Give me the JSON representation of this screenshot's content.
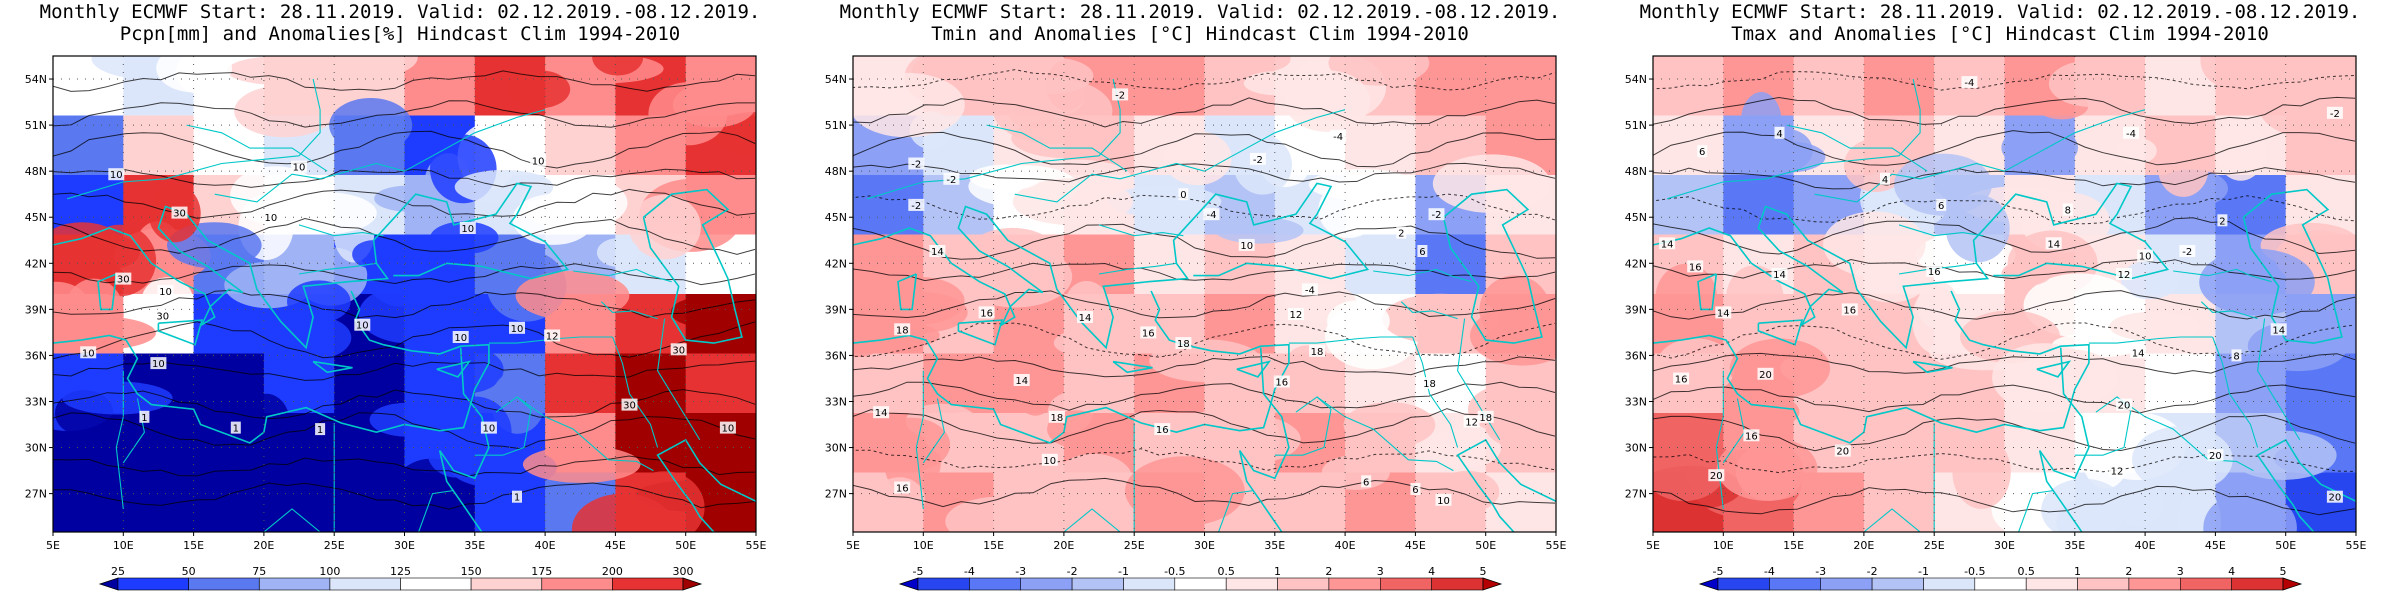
{
  "panels": [
    {
      "id": "pcpn",
      "title_line1": "Monthly ECMWF Start: 28.11.2019. Valid: 02.12.2019.-08.12.2019.",
      "title_line2": "Pcpn[mm] and Anomalies[%] Hindcast Clim 1994-2010",
      "legend_labels": [
        "25",
        "50",
        "75",
        "100",
        "125",
        "150",
        "175",
        "200",
        "300"
      ],
      "palette": [
        "#0000a0",
        "#1e3cff",
        "#5a78f0",
        "#a0b4f5",
        "#dce6fa",
        "#ffffff",
        "#ffd2d2",
        "#ff8c8c",
        "#e63232",
        "#a00000"
      ],
      "field": [
        [
          "#ffffff",
          "#dce6fa",
          "#ffffff",
          "#ffd2d2",
          "#ffd2d2",
          "#ff8c8c",
          "#e63232",
          "#ff8c8c",
          "#e63232",
          "#ff8c8c"
        ],
        [
          "#5a78f0",
          "#ffd2d2",
          "#ffffff",
          "#dce6fa",
          "#5a78f0",
          "#1e3cff",
          "#ffffff",
          "#ffd2d2",
          "#ff8c8c",
          "#e63232"
        ],
        [
          "#1e3cff",
          "#e63232",
          "#ffd2d2",
          "#ffffff",
          "#dce6fa",
          "#a0b4f5",
          "#dce6fa",
          "#ffffff",
          "#ffd2d2",
          "#ff8c8c"
        ],
        [
          "#e63232",
          "#ff8c8c",
          "#5a78f0",
          "#a0b4f5",
          "#1e3cff",
          "#1e3cff",
          "#5a78f0",
          "#a0b4f5",
          "#dce6fa",
          "#ffffff"
        ],
        [
          "#ff8c8c",
          "#ffffff",
          "#1e3cff",
          "#1e3cff",
          "#0000a0",
          "#1e3cff",
          "#1e3cff",
          "#ff8c8c",
          "#e63232",
          "#a00000"
        ],
        [
          "#1e3cff",
          "#0000a0",
          "#0000a0",
          "#1e3cff",
          "#0000a0",
          "#1e3cff",
          "#5a78f0",
          "#e63232",
          "#a00000",
          "#e63232"
        ],
        [
          "#0000a0",
          "#0000a0",
          "#0000a0",
          "#0000a0",
          "#0000a0",
          "#1e3cff",
          "#1e3cff",
          "#ff8c8c",
          "#a00000",
          "#a00000"
        ],
        [
          "#0000a0",
          "#0000a0",
          "#0000a0",
          "#0000a0",
          "#0000a0",
          "#0000a0",
          "#1e3cff",
          "#5a78f0",
          "#e63232",
          "#a00000"
        ]
      ],
      "contour_labels": [
        {
          "text": "10",
          "lon": 9.5,
          "lat": 47.8
        },
        {
          "text": "10",
          "lon": 22.5,
          "lat": 48.3
        },
        {
          "text": "10",
          "lon": 39.5,
          "lat": 48.7
        },
        {
          "text": "30",
          "lon": 14,
          "lat": 45.3
        },
        {
          "text": "10",
          "lon": 20.5,
          "lat": 45
        },
        {
          "text": "10",
          "lon": 34.5,
          "lat": 44.3
        },
        {
          "text": "30",
          "lon": 10,
          "lat": 41
        },
        {
          "text": "10",
          "lon": 13,
          "lat": 40.2
        },
        {
          "text": "30",
          "lon": 12.8,
          "lat": 38.6
        },
        {
          "text": "10",
          "lon": 27,
          "lat": 38
        },
        {
          "text": "10",
          "lon": 38,
          "lat": 37.8
        },
        {
          "text": "10",
          "lon": 7.5,
          "lat": 36.2
        },
        {
          "text": "10",
          "lon": 12.5,
          "lat": 35.5
        },
        {
          "text": "10",
          "lon": 34,
          "lat": 37.2
        },
        {
          "text": "12",
          "lon": 40.5,
          "lat": 37.3
        },
        {
          "text": "30",
          "lon": 49.5,
          "lat": 36.4
        },
        {
          "text": "30",
          "lon": 46,
          "lat": 32.8
        },
        {
          "text": "1",
          "lon": 11.5,
          "lat": 32
        },
        {
          "text": "1",
          "lon": 18,
          "lat": 31.3
        },
        {
          "text": "1",
          "lon": 24,
          "lat": 31.2
        },
        {
          "text": "10",
          "lon": 36,
          "lat": 31.3
        },
        {
          "text": "10",
          "lon": 53,
          "lat": 31.3
        },
        {
          "text": "1",
          "lon": 38,
          "lat": 26.8
        }
      ]
    },
    {
      "id": "tmin",
      "title_line1": "Monthly ECMWF Start: 28.11.2019. Valid: 02.12.2019.-08.12.2019.",
      "title_line2": "Tmin and Anomalies [°C] Hindcast Clim 1994-2010",
      "legend_labels": [
        "-5",
        "-4",
        "-3",
        "-2",
        "-1",
        "-0.5",
        "0.5",
        "1",
        "2",
        "3",
        "4",
        "5"
      ],
      "palette": [
        "#0000c8",
        "#2846f0",
        "#5a78f5",
        "#8ca0f5",
        "#b4c3f5",
        "#dce6fa",
        "#ffffff",
        "#ffe6e6",
        "#ffc3c3",
        "#ff9696",
        "#f06464",
        "#dc3232",
        "#b40000"
      ],
      "field": [
        [
          "#ffe6e6",
          "#ffc3c3",
          "#ffc3c3",
          "#ff9696",
          "#ff9696",
          "#ffc3c3",
          "#ffe6e6",
          "#ffc3c3",
          "#ff9696",
          "#ff9696"
        ],
        [
          "#8ca0f5",
          "#dce6fa",
          "#ffe6e6",
          "#ffc3c3",
          "#ffe6e6",
          "#dce6fa",
          "#ffffff",
          "#ffe6e6",
          "#ffc3c3",
          "#ff9696"
        ],
        [
          "#5a78f5",
          "#b4c3f5",
          "#ffffff",
          "#ffe6e6",
          "#dce6fa",
          "#b4c3f5",
          "#dce6fa",
          "#ffffff",
          "#8ca0f5",
          "#ffe6e6"
        ],
        [
          "#ff9696",
          "#ffc3c3",
          "#ffc3c3",
          "#ff9696",
          "#ffe6e6",
          "#ffc3c3",
          "#ffe6e6",
          "#dce6fa",
          "#5a78f5",
          "#ffc3c3"
        ],
        [
          "#ff9696",
          "#ffc3c3",
          "#ff9696",
          "#ffc3c3",
          "#ffc3c3",
          "#ff9696",
          "#ffe6e6",
          "#ffffff",
          "#ffc3c3",
          "#ff9696"
        ],
        [
          "#ffc3c3",
          "#ff9696",
          "#ff9696",
          "#ffc3c3",
          "#ff9696",
          "#ffc3c3",
          "#ffc3c3",
          "#ffe6e6",
          "#ffffff",
          "#ffc3c3"
        ],
        [
          "#ff9696",
          "#ffc3c3",
          "#ffc3c3",
          "#ff9696",
          "#ffc3c3",
          "#ffc3c3",
          "#ff9696",
          "#ffc3c3",
          "#ffe6e6",
          "#ffc3c3"
        ],
        [
          "#ffc3c3",
          "#ff9696",
          "#ffc3c3",
          "#ffc3c3",
          "#ff9696",
          "#ffc3c3",
          "#ffc3c3",
          "#ff9696",
          "#ffc3c3",
          "#ffe6e6"
        ]
      ],
      "contour_labels": [
        {
          "text": "-2",
          "lon": 9.5,
          "lat": 48.5
        },
        {
          "text": "-2",
          "lon": 24,
          "lat": 53
        },
        {
          "text": "-4",
          "lon": 39.5,
          "lat": 50.3
        },
        {
          "text": "-2",
          "lon": 33.8,
          "lat": 48.8
        },
        {
          "text": "-2",
          "lon": 12,
          "lat": 47.5
        },
        {
          "text": "-2",
          "lon": 9.5,
          "lat": 45.8
        },
        {
          "text": "0",
          "lon": 28.5,
          "lat": 46.5
        },
        {
          "text": "-4",
          "lon": 30.5,
          "lat": 45.2
        },
        {
          "text": "-2",
          "lon": 46.5,
          "lat": 45.2
        },
        {
          "text": "2",
          "lon": 44,
          "lat": 44
        },
        {
          "text": "6",
          "lon": 45.5,
          "lat": 42.8
        },
        {
          "text": "14",
          "lon": 11,
          "lat": 42.8
        },
        {
          "text": "10",
          "lon": 33,
          "lat": 43.2
        },
        {
          "text": "-4",
          "lon": 37.5,
          "lat": 40.3
        },
        {
          "text": "18",
          "lon": 8.5,
          "lat": 37.7
        },
        {
          "text": "16",
          "lon": 14.5,
          "lat": 38.8
        },
        {
          "text": "14",
          "lon": 21.5,
          "lat": 38.5
        },
        {
          "text": "16",
          "lon": 26,
          "lat": 37.5
        },
        {
          "text": "18",
          "lon": 28.5,
          "lat": 36.8
        },
        {
          "text": "12",
          "lon": 36.5,
          "lat": 38.7
        },
        {
          "text": "18",
          "lon": 38,
          "lat": 36.3
        },
        {
          "text": "14",
          "lon": 17,
          "lat": 34.4
        },
        {
          "text": "16",
          "lon": 35.5,
          "lat": 34.3
        },
        {
          "text": "18",
          "lon": 46,
          "lat": 34.2
        },
        {
          "text": "14",
          "lon": 7,
          "lat": 32.3
        },
        {
          "text": "18",
          "lon": 19.5,
          "lat": 32
        },
        {
          "text": "16",
          "lon": 27,
          "lat": 31.2
        },
        {
          "text": "18",
          "lon": 50,
          "lat": 32
        },
        {
          "text": "12",
          "lon": 49,
          "lat": 31.7
        },
        {
          "text": "10",
          "lon": 19,
          "lat": 29.2
        },
        {
          "text": "16",
          "lon": 8.5,
          "lat": 27.4
        },
        {
          "text": "6",
          "lon": 41.5,
          "lat": 27.8
        },
        {
          "text": "10",
          "lon": 47,
          "lat": 26.6
        },
        {
          "text": "6",
          "lon": 45,
          "lat": 27.3
        }
      ]
    },
    {
      "id": "tmax",
      "title_line1": "Monthly ECMWF Start: 28.11.2019. Valid: 02.12.2019.-08.12.2019.",
      "title_line2": "Tmax and Anomalies [°C] Hindcast Clim 1994-2010",
      "legend_labels": [
        "-5",
        "-4",
        "-3",
        "-2",
        "-1",
        "-0.5",
        "0.5",
        "1",
        "2",
        "3",
        "4",
        "5"
      ],
      "palette": [
        "#0000c8",
        "#2846f0",
        "#5a78f5",
        "#8ca0f5",
        "#b4c3f5",
        "#dce6fa",
        "#ffffff",
        "#ffe6e6",
        "#ffc3c3",
        "#ff9696",
        "#f06464",
        "#dc3232",
        "#b40000"
      ],
      "field": [
        [
          "#ffc3c3",
          "#ff9696",
          "#ffc3c3",
          "#ff9696",
          "#ffc3c3",
          "#ff9696",
          "#ffc3c3",
          "#ffe6e6",
          "#ffc3c3",
          "#ffc3c3"
        ],
        [
          "#ffe6e6",
          "#8ca0f5",
          "#ffe6e6",
          "#ffc3c3",
          "#ffe6e6",
          "#8ca0f5",
          "#ffe6e6",
          "#ffc3c3",
          "#ffe6e6",
          "#ffc3c3"
        ],
        [
          "#b4c3f5",
          "#5a78f5",
          "#8ca0f5",
          "#dce6fa",
          "#b4c3f5",
          "#ffe6e6",
          "#dce6fa",
          "#8ca0f5",
          "#5a78f5",
          "#ffe6e6"
        ],
        [
          "#ffc3c3",
          "#ffe6e6",
          "#ffc3c3",
          "#ffe6e6",
          "#ffffff",
          "#ffc3c3",
          "#ffe6e6",
          "#dce6fa",
          "#8ca0f5",
          "#ffc3c3"
        ],
        [
          "#ff9696",
          "#ffc3c3",
          "#ffc3c3",
          "#ffc3c3",
          "#ffe6e6",
          "#ffc3c3",
          "#ffffff",
          "#ffe6e6",
          "#b4c3f5",
          "#8ca0f5"
        ],
        [
          "#ffc3c3",
          "#ff9696",
          "#ffc3c3",
          "#ffc3c3",
          "#ffc3c3",
          "#ffe6e6",
          "#ffe6e6",
          "#ffffff",
          "#8ca0f5",
          "#5a78f5"
        ],
        [
          "#f06464",
          "#ff9696",
          "#ffc3c3",
          "#ffc3c3",
          "#ffc3c3",
          "#ffe6e6",
          "#ffffff",
          "#dce6fa",
          "#b4c3f5",
          "#5a78f5"
        ],
        [
          "#dc3232",
          "#f06464",
          "#ff9696",
          "#ffc3c3",
          "#ffe6e6",
          "#ffffff",
          "#dce6fa",
          "#dce6fa",
          "#8ca0f5",
          "#2846f0"
        ]
      ],
      "contour_labels": [
        {
          "text": "-4",
          "lon": 27.5,
          "lat": 53.8
        },
        {
          "text": "-2",
          "lon": 53.5,
          "lat": 51.8
        },
        {
          "text": "4",
          "lon": 14,
          "lat": 50.5
        },
        {
          "text": "-4",
          "lon": 39,
          "lat": 50.5
        },
        {
          "text": "6",
          "lon": 8.5,
          "lat": 49.3
        },
        {
          "text": "4",
          "lon": 21.5,
          "lat": 47.5
        },
        {
          "text": "6",
          "lon": 25.5,
          "lat": 45.8
        },
        {
          "text": "8",
          "lon": 34.5,
          "lat": 45.5
        },
        {
          "text": "14",
          "lon": 6,
          "lat": 43.3
        },
        {
          "text": "14",
          "lon": 33.5,
          "lat": 43.3
        },
        {
          "text": "-2",
          "lon": 43,
          "lat": 42.8
        },
        {
          "text": "2",
          "lon": 45.5,
          "lat": 44.8
        },
        {
          "text": "16",
          "lon": 8,
          "lat": 41.8
        },
        {
          "text": "14",
          "lon": 14,
          "lat": 41.3
        },
        {
          "text": "16",
          "lon": 25,
          "lat": 41.5
        },
        {
          "text": "10",
          "lon": 40,
          "lat": 42.5
        },
        {
          "text": "12",
          "lon": 38.5,
          "lat": 41.3
        },
        {
          "text": "14",
          "lon": 10,
          "lat": 38.8
        },
        {
          "text": "16",
          "lon": 19,
          "lat": 39
        },
        {
          "text": "14",
          "lon": 49.5,
          "lat": 37.7
        },
        {
          "text": "14",
          "lon": 39.5,
          "lat": 36.2
        },
        {
          "text": "8",
          "lon": 46.5,
          "lat": 36
        },
        {
          "text": "16",
          "lon": 7,
          "lat": 34.5
        },
        {
          "text": "20",
          "lon": 13,
          "lat": 34.8
        },
        {
          "text": "16",
          "lon": 12,
          "lat": 30.8
        },
        {
          "text": "20",
          "lon": 18.5,
          "lat": 29.8
        },
        {
          "text": "20",
          "lon": 38.5,
          "lat": 32.8
        },
        {
          "text": "12",
          "lon": 38,
          "lat": 28.5
        },
        {
          "text": "20",
          "lon": 45,
          "lat": 29.5
        },
        {
          "text": "20",
          "lon": 9.5,
          "lat": 28.2
        },
        {
          "text": "20",
          "lon": 53.5,
          "lat": 26.8
        }
      ]
    }
  ],
  "lat_ticks": [
    "54N",
    "51N",
    "48N",
    "45N",
    "42N",
    "39N",
    "36N",
    "33N",
    "30N",
    "27N"
  ],
  "lon_ticks": [
    "5E",
    "10E",
    "15E",
    "20E",
    "25E",
    "30E",
    "35E",
    "40E",
    "45E",
    "50E",
    "55E"
  ],
  "map_extent": {
    "lon": [
      5,
      55
    ],
    "lat": [
      24.5,
      55.5
    ]
  },
  "colors": {
    "coast": "#00c8c8",
    "contour": "#000000",
    "grid": "#555555",
    "frame": "#000000"
  }
}
